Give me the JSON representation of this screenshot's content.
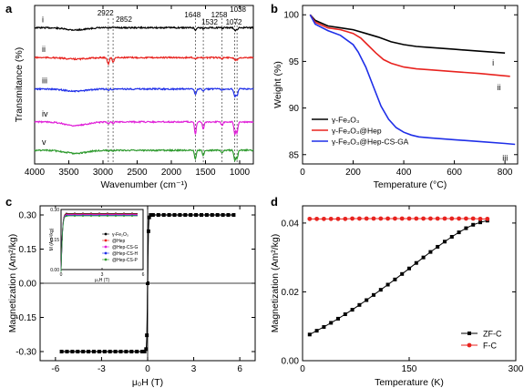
{
  "chart_data": [
    {
      "panel": "a",
      "type": "line",
      "xlabel": "Wavenumber (cm⁻¹)",
      "ylabel": "Transmitance (%)",
      "xlim": [
        4000,
        800
      ],
      "xticks": [
        "4000",
        "3500",
        "3000",
        "2500",
        "2000",
        "1500",
        "1000"
      ],
      "reference_lines": [
        {
          "label": "2922",
          "x": 2922
        },
        {
          "label": "2852",
          "x": 2852
        },
        {
          "label": "1648",
          "x": 1648
        },
        {
          "label": "1532",
          "x": 1532
        },
        {
          "label": "1258",
          "x": 1258
        },
        {
          "label": "1072",
          "x": 1072
        },
        {
          "label": "1038",
          "x": 1038
        }
      ],
      "series": [
        {
          "name": "i",
          "color": "#000000",
          "baseline": 10,
          "dips": [
            [
              3400,
              1.5
            ],
            [
              2922,
              0.3
            ],
            [
              1648,
              1.6
            ],
            [
              1532,
              0.6
            ],
            [
              1258,
              0.4
            ],
            [
              1072,
              1.8
            ],
            [
              1038,
              1.6
            ]
          ]
        },
        {
          "name": "ii",
          "color": "#e8231f",
          "baseline": 30,
          "dips": [
            [
              3400,
              1.0
            ],
            [
              2922,
              4.5
            ],
            [
              2852,
              3.0
            ],
            [
              1648,
              0.8
            ],
            [
              1532,
              0.4
            ],
            [
              1258,
              0.8
            ],
            [
              1072,
              1.6
            ],
            [
              1038,
              1.4
            ]
          ]
        },
        {
          "name": "iii",
          "color": "#1f2fe8",
          "baseline": 51,
          "dips": [
            [
              3400,
              1.5
            ],
            [
              2922,
              1.0
            ],
            [
              2852,
              0.6
            ],
            [
              1648,
              3.5
            ],
            [
              1532,
              1.5
            ],
            [
              1258,
              0.8
            ],
            [
              1072,
              5.0
            ],
            [
              1038,
              4.5
            ]
          ]
        },
        {
          "name": "iv",
          "color": "#e020d8",
          "baseline": 73,
          "dips": [
            [
              3400,
              2.5
            ],
            [
              2922,
              1.2
            ],
            [
              2852,
              0.8
            ],
            [
              1648,
              8.0
            ],
            [
              1532,
              4.5
            ],
            [
              1258,
              2.5
            ],
            [
              1072,
              8.0
            ],
            [
              1038,
              7.0
            ]
          ]
        },
        {
          "name": "v",
          "color": "#2e9a2e",
          "baseline": 92,
          "dips": [
            [
              3400,
              2.0
            ],
            [
              2922,
              1.0
            ],
            [
              2852,
              0.6
            ],
            [
              1648,
              6.0
            ],
            [
              1532,
              3.5
            ],
            [
              1258,
              2.0
            ],
            [
              1072,
              6.5
            ],
            [
              1038,
              5.5
            ]
          ]
        }
      ]
    },
    {
      "panel": "b",
      "type": "line",
      "xlabel": "Temperature (°C)",
      "ylabel": "Weight (%)",
      "xlim": [
        0,
        850
      ],
      "ylim": [
        84,
        101
      ],
      "xticks": [
        0,
        200,
        400,
        600,
        800
      ],
      "yticks": [
        85,
        90,
        95,
        100
      ],
      "legend": "bottom-left",
      "series": [
        {
          "name": "γ-Fe₂O₃",
          "label": "i",
          "color": "#000000",
          "x": [
            30,
            50,
            100,
            150,
            200,
            250,
            300,
            350,
            400,
            450,
            500,
            600,
            700,
            800
          ],
          "y": [
            100,
            99.4,
            98.8,
            98.6,
            98.4,
            98.0,
            97.6,
            97.1,
            96.8,
            96.6,
            96.5,
            96.3,
            96.1,
            95.9
          ]
        },
        {
          "name": "γ-Fe₂O₃@Hep",
          "label": "ii",
          "color": "#e8231f",
          "x": [
            30,
            50,
            100,
            150,
            200,
            230,
            260,
            290,
            320,
            350,
            400,
            450,
            500,
            600,
            700,
            820
          ],
          "y": [
            100,
            99.2,
            98.6,
            98.4,
            98.0,
            97.5,
            96.7,
            95.9,
            95.2,
            94.8,
            94.4,
            94.2,
            94.1,
            93.9,
            93.7,
            93.4
          ]
        },
        {
          "name": "γ-Fe₂O₃@Hep-CS-GA",
          "label": "iii",
          "color": "#1f2fe8",
          "x": [
            30,
            50,
            100,
            150,
            200,
            220,
            250,
            280,
            310,
            340,
            370,
            400,
            430,
            460,
            500,
            600,
            700,
            800,
            840
          ],
          "y": [
            100,
            99.0,
            98.3,
            97.8,
            96.8,
            96.0,
            94.4,
            92.3,
            90.2,
            88.8,
            87.9,
            87.4,
            87.1,
            86.9,
            86.8,
            86.6,
            86.4,
            86.2,
            86.1
          ]
        }
      ]
    },
    {
      "panel": "c",
      "type": "scatter",
      "xlabel": "μ₀H (T)",
      "ylabel": "Magnetization (Am²/kg)",
      "xlim": [
        -7,
        7
      ],
      "ylim": [
        -0.34,
        0.34
      ],
      "xticks": [
        -6,
        -3,
        0,
        3,
        6
      ],
      "yticks": [
        -0.3,
        -0.15,
        0,
        0.15,
        0.3
      ],
      "series": [
        {
          "name": "γ-Fe₂O₃",
          "color": "#000000",
          "ms": 0.3,
          "H0": 0.05
        }
      ],
      "inset": {
        "ylabel": "M (Am²/kg)",
        "xlabel": "μ₀H (T)",
        "ylim": [
          0,
          0.3
        ],
        "yticks": [
          "0.00",
          "0.15",
          "0.30"
        ],
        "xticks": [
          "0",
          "3",
          "6"
        ],
        "series": [
          {
            "name": "γ-Fe₂O₃",
            "color": "#000000"
          },
          {
            "name": "@Hep",
            "color": "#e8231f"
          },
          {
            "name": "@Hep-CS-G",
            "color": "#e020d8"
          },
          {
            "name": "@Hep-CS-H",
            "color": "#1f2fe8"
          },
          {
            "name": "@Hep-CS-P",
            "color": "#2e9a2e"
          }
        ]
      }
    },
    {
      "panel": "d",
      "type": "line",
      "xlabel": "Temperature (K)",
      "ylabel": "Magnetization (Am²/kg)",
      "xlim": [
        0,
        300
      ],
      "ylim": [
        0,
        0.045
      ],
      "xticks": [
        0,
        150,
        300
      ],
      "yticks": [
        "0.00",
        "0.02",
        "0.04"
      ],
      "legend": "bottom-right",
      "series": [
        {
          "name": "ZF-C",
          "color": "#000000",
          "marker": "square",
          "x": [
            10,
            20,
            30,
            40,
            50,
            60,
            70,
            80,
            90,
            100,
            110,
            120,
            130,
            140,
            150,
            160,
            170,
            180,
            190,
            200,
            210,
            220,
            230,
            240,
            250,
            260
          ],
          "y": [
            0.0076,
            0.0087,
            0.0098,
            0.011,
            0.0122,
            0.0135,
            0.0148,
            0.0162,
            0.0176,
            0.0191,
            0.0206,
            0.0221,
            0.0236,
            0.0252,
            0.0268,
            0.0284,
            0.03,
            0.0316,
            0.0331,
            0.0346,
            0.036,
            0.0373,
            0.0385,
            0.0395,
            0.0402,
            0.0407
          ]
        },
        {
          "name": "F-C",
          "color": "#e8231f",
          "marker": "circle",
          "x": [
            10,
            20,
            30,
            40,
            50,
            60,
            70,
            80,
            90,
            100,
            110,
            120,
            130,
            140,
            150,
            160,
            170,
            180,
            190,
            200,
            210,
            220,
            230,
            240,
            250,
            260
          ],
          "y": [
            0.0412,
            0.0412,
            0.0412,
            0.0412,
            0.0412,
            0.0412,
            0.0413,
            0.0413,
            0.0413,
            0.0413,
            0.0413,
            0.0413,
            0.0413,
            0.0413,
            0.0413,
            0.0413,
            0.0413,
            0.0413,
            0.0413,
            0.0413,
            0.0413,
            0.0413,
            0.0413,
            0.0413,
            0.0412,
            0.0412
          ]
        }
      ]
    }
  ]
}
